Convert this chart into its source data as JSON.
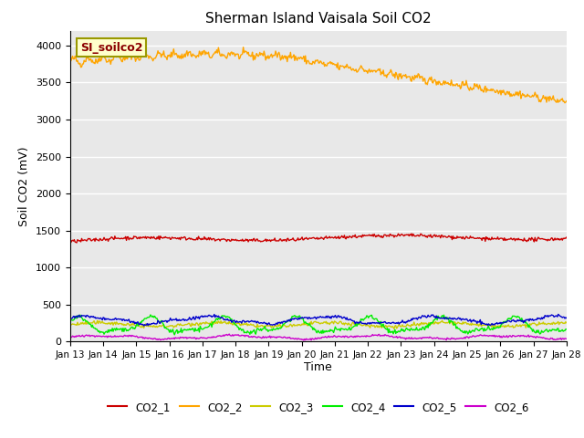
{
  "title": "Sherman Island Vaisala Soil CO2",
  "ylabel": "Soil CO2 (mV)",
  "xlabel": "Time",
  "annotation": "SI_soilco2",
  "ylim": [
    0,
    4200
  ],
  "yticks": [
    0,
    500,
    1000,
    1500,
    2000,
    2500,
    3000,
    3500,
    4000
  ],
  "xtick_labels": [
    "Jan 13",
    "Jan 14",
    "Jan 15",
    "Jan 16",
    "Jan 17",
    "Jan 18",
    "Jan 19",
    "Jan 20",
    "Jan 21",
    "Jan 22",
    "Jan 23",
    "Jan 24",
    "Jan 25",
    "Jan 26",
    "Jan 27",
    "Jan 28"
  ],
  "background_color": "#e8e8e8",
  "series_colors": {
    "CO2_1": "#cc0000",
    "CO2_2": "#ffa500",
    "CO2_3": "#cccc00",
    "CO2_4": "#00ee00",
    "CO2_5": "#0000cc",
    "CO2_6": "#cc00cc"
  },
  "linewidth": 1.0
}
